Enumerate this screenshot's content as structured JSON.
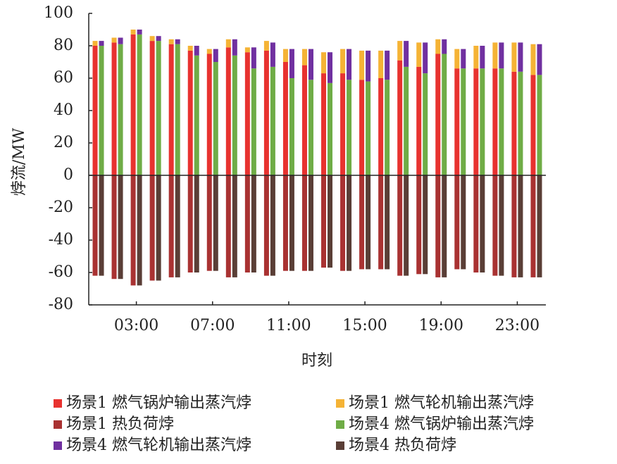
{
  "chart_data": {
    "type": "bar",
    "y_label": "㶿流/MW",
    "x_label": "时刻",
    "categories": [
      null,
      null,
      "03:00",
      null,
      null,
      null,
      "07:00",
      null,
      null,
      null,
      "11:00",
      null,
      null,
      null,
      "15:00",
      null,
      null,
      null,
      "19:00",
      null,
      null,
      null,
      "23:00",
      null
    ],
    "ylim": [
      -80,
      100
    ],
    "yticks": [
      -80,
      -60,
      -40,
      -20,
      0,
      20,
      40,
      60,
      80,
      100
    ],
    "series": [
      {
        "name": "场景1 燃气锅炉输出蒸汽㶿",
        "color": "#e8322f",
        "values": [
          80,
          82,
          87,
          83,
          81,
          77,
          75,
          79,
          76,
          77,
          70,
          68,
          63,
          63,
          59,
          60,
          71,
          67,
          75,
          66,
          66,
          66,
          64,
          62
        ]
      },
      {
        "name": "场景1 燃气轮机输出蒸汽㶿",
        "color": "#f5b335",
        "values": [
          3,
          3,
          3,
          3,
          3,
          3,
          3,
          5,
          3,
          6,
          8,
          10,
          13,
          15,
          18,
          17,
          12,
          15,
          9,
          12,
          14,
          16,
          18,
          19
        ]
      },
      {
        "name": "场景1 热负荷㶿",
        "color": "#a93232",
        "values": [
          -62,
          -64,
          -68,
          -65,
          -63,
          -60,
          -59,
          -63,
          -60,
          -62,
          -59,
          -59,
          -57,
          -59,
          -58,
          -58,
          -62,
          -61,
          -63,
          -58,
          -60,
          -62,
          -63,
          -63
        ]
      },
      {
        "name": "场景4 燃气锅炉输出蒸汽㶿",
        "color": "#6fac46",
        "values": [
          80,
          81,
          87,
          83,
          81,
          74,
          70,
          74,
          66,
          67,
          60,
          59,
          57,
          59,
          58,
          59,
          67,
          63,
          75,
          66,
          66,
          66,
          64,
          62
        ]
      },
      {
        "name": "场景4 燃气轮机输出蒸汽㶿",
        "color": "#7030a0",
        "values": [
          3,
          4,
          3,
          3,
          3,
          6,
          8,
          10,
          13,
          15,
          18,
          19,
          19,
          19,
          19,
          18,
          16,
          19,
          9,
          12,
          14,
          16,
          18,
          19
        ]
      },
      {
        "name": "场景4 热负荷㶿",
        "color": "#5a3e36",
        "values": [
          -62,
          -64,
          -68,
          -65,
          -63,
          -60,
          -59,
          -63,
          -60,
          -62,
          -59,
          -59,
          -57,
          -59,
          -58,
          -58,
          -62,
          -61,
          -63,
          -58,
          -60,
          -62,
          -63,
          -63
        ]
      }
    ]
  }
}
